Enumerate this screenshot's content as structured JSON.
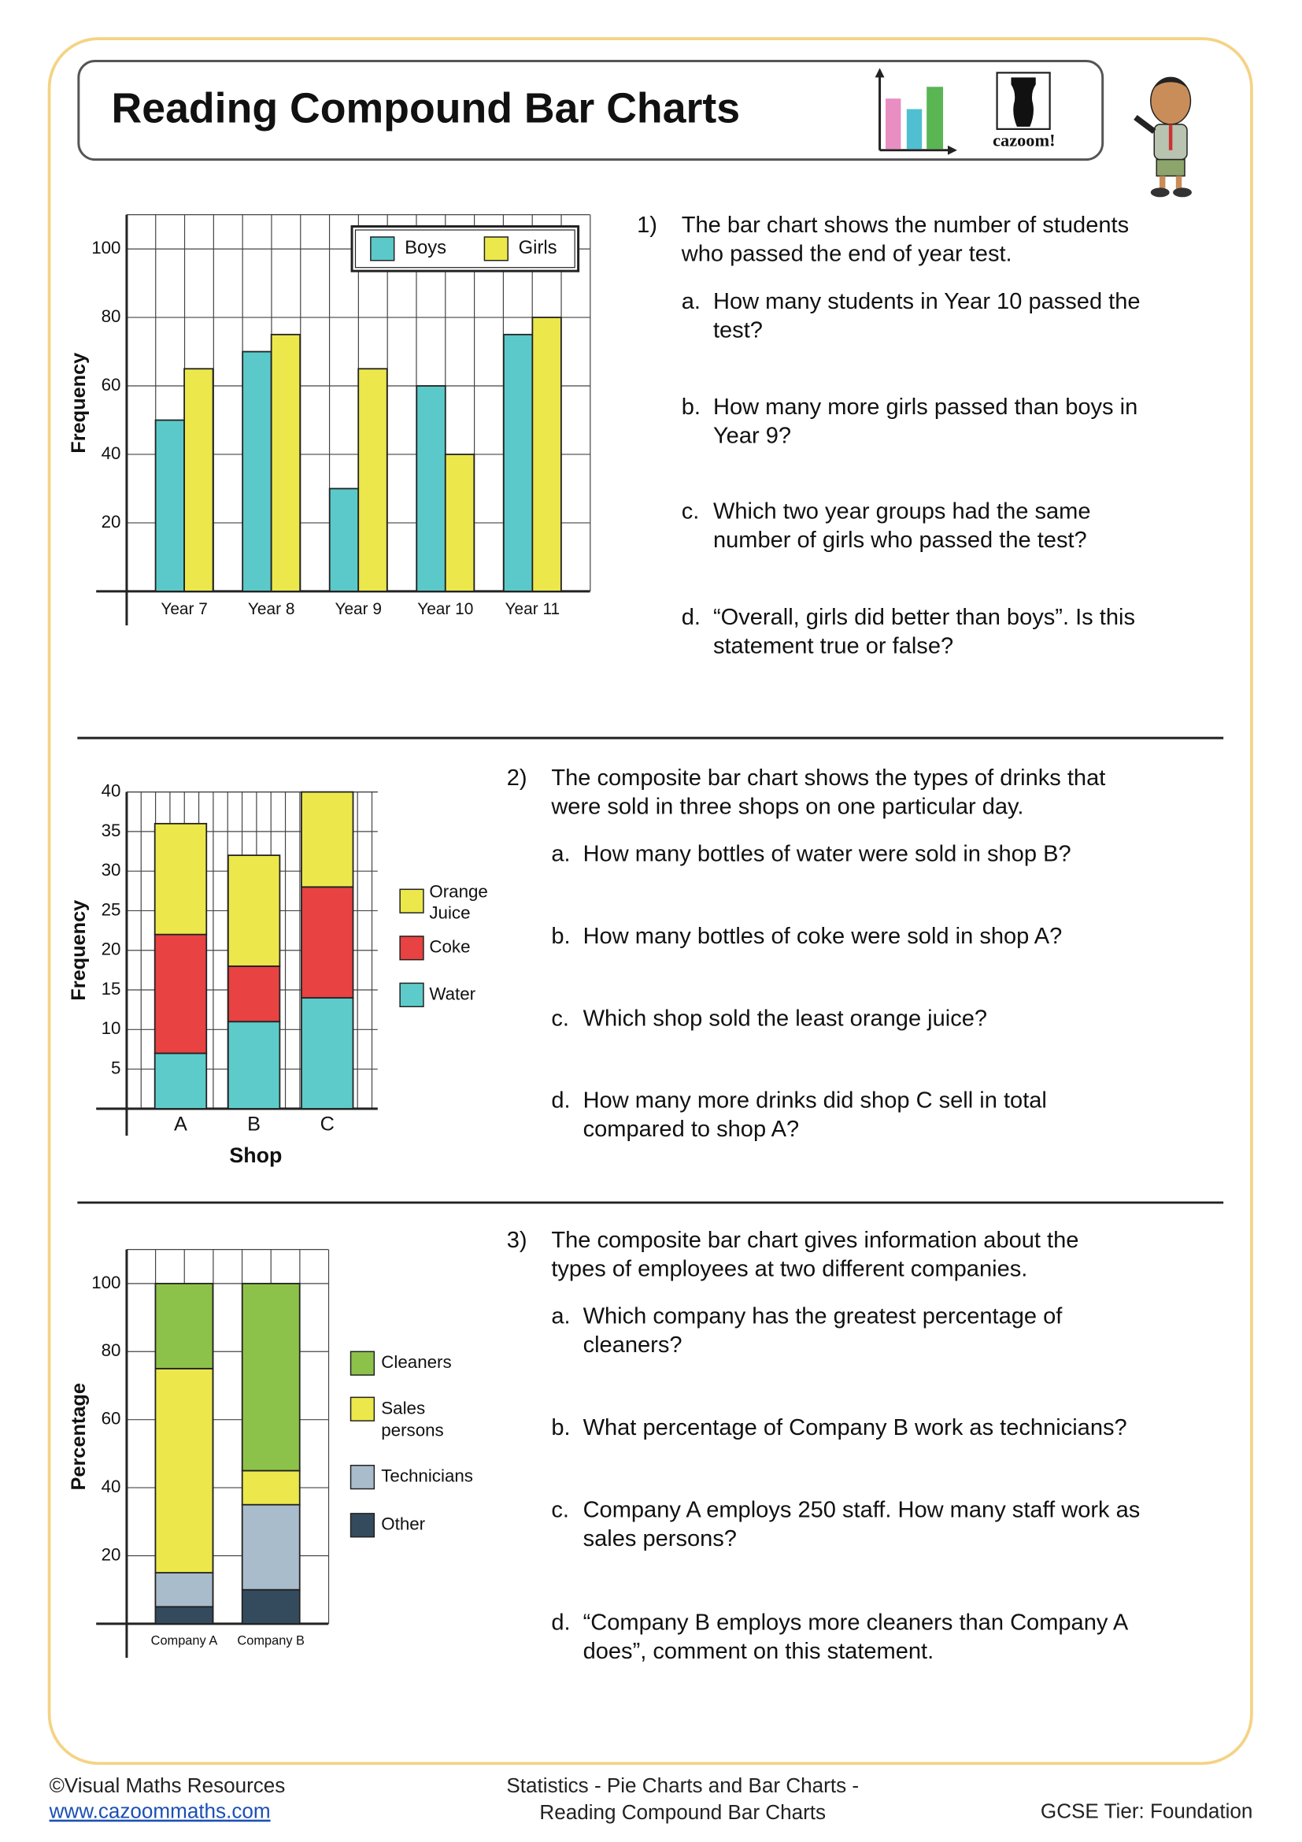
{
  "header": {
    "title": "Reading Compound Bar Charts",
    "logo": "cazoom!"
  },
  "chart_data": [
    {
      "type": "bar",
      "y_label": "Frequency",
      "categories": [
        "Year 7",
        "Year 8",
        "Year 9",
        "Year 10",
        "Year 11"
      ],
      "series": [
        {
          "name": "Boys",
          "color": "#5bc9c9",
          "values": [
            50,
            70,
            30,
            60,
            75
          ]
        },
        {
          "name": "Girls",
          "color": "#ece84c",
          "values": [
            65,
            75,
            65,
            40,
            80
          ]
        }
      ],
      "ylim": [
        0,
        110
      ],
      "yticks": [
        20,
        40,
        60,
        80,
        100
      ],
      "grid": true,
      "legend": "upper right"
    },
    {
      "type": "stacked_bar",
      "x_label": "Shop",
      "y_label": "Frequency",
      "categories": [
        "A",
        "B",
        "C"
      ],
      "series": [
        {
          "name": "Water",
          "color": "#5ecbcb",
          "values": [
            7,
            11,
            14
          ]
        },
        {
          "name": "Coke",
          "color": "#e84242",
          "values": [
            15,
            7,
            14
          ]
        },
        {
          "name": "Orange Juice",
          "color": "#ece84c",
          "values": [
            14,
            14,
            12
          ]
        }
      ],
      "ylim": [
        0,
        40
      ],
      "yticks": [
        5,
        10,
        15,
        20,
        25,
        30,
        35,
        40
      ],
      "grid": true,
      "legend": "right"
    },
    {
      "type": "stacked_bar",
      "y_label": "Percentage",
      "categories": [
        "Company A",
        "Company B"
      ],
      "series": [
        {
          "name": "Other",
          "color": "#344b5e",
          "values": [
            5,
            10
          ]
        },
        {
          "name": "Technicians",
          "color": "#a9bccb",
          "values": [
            10,
            25
          ]
        },
        {
          "name": "Sales persons",
          "color": "#ece84c",
          "values": [
            60,
            10
          ]
        },
        {
          "name": "Cleaners",
          "color": "#8dc24a",
          "values": [
            25,
            55
          ]
        }
      ],
      "ylim": [
        0,
        110
      ],
      "yticks": [
        20,
        40,
        60,
        80,
        100
      ],
      "grid": true,
      "legend": "right"
    }
  ],
  "questions": [
    {
      "number": "1)",
      "text": [
        "The bar chart shows the number of students",
        "who passed the end of year test."
      ],
      "parts": [
        {
          "letter": "a.",
          "text": [
            "How many students in Year 10 passed the",
            "test?"
          ]
        },
        {
          "letter": "b.",
          "text": [
            "How many more girls passed than boys in",
            "Year 9?"
          ]
        },
        {
          "letter": "c.",
          "text": [
            "Which two year groups had the same",
            "number of girls who passed the test?"
          ]
        },
        {
          "letter": "d.",
          "text": [
            "“Overall, girls did better than boys”. Is this",
            "statement true or false?"
          ]
        }
      ]
    },
    {
      "number": "2)",
      "text": [
        "The composite bar chart shows the types of drinks that",
        "were sold in three shops on one particular day."
      ],
      "parts": [
        {
          "letter": "a.",
          "text": [
            "How many bottles of water were sold in shop B?"
          ]
        },
        {
          "letter": "b.",
          "text": [
            "How many bottles of coke were sold in shop A?"
          ]
        },
        {
          "letter": "c.",
          "text": [
            "Which shop sold the least orange juice?"
          ]
        },
        {
          "letter": "d.",
          "text": [
            "How many more drinks did shop C sell in total",
            "compared to shop A?"
          ]
        }
      ]
    },
    {
      "number": "3)",
      "text": [
        "The composite bar chart gives information about the",
        "types of employees at two different companies."
      ],
      "parts": [
        {
          "letter": "a.",
          "text": [
            "Which company has the greatest percentage of",
            "cleaners?"
          ]
        },
        {
          "letter": "b.",
          "text": [
            "What percentage of Company B work as technicians?"
          ]
        },
        {
          "letter": "c.",
          "text": [
            "Company A employs 250 staff. How many staff work as",
            "sales persons?"
          ]
        },
        {
          "letter": "d.",
          "text": [
            "“Company B employs more cleaners than Company A",
            "does”, comment on this statement."
          ]
        }
      ]
    }
  ],
  "footer": {
    "left": "©Visual Maths Resources",
    "link": "www.cazoommaths.com",
    "center": [
      "Statistics - Pie Charts and Bar Charts -",
      "Reading Compound Bar Charts"
    ],
    "right": "GCSE Tier: Foundation"
  }
}
